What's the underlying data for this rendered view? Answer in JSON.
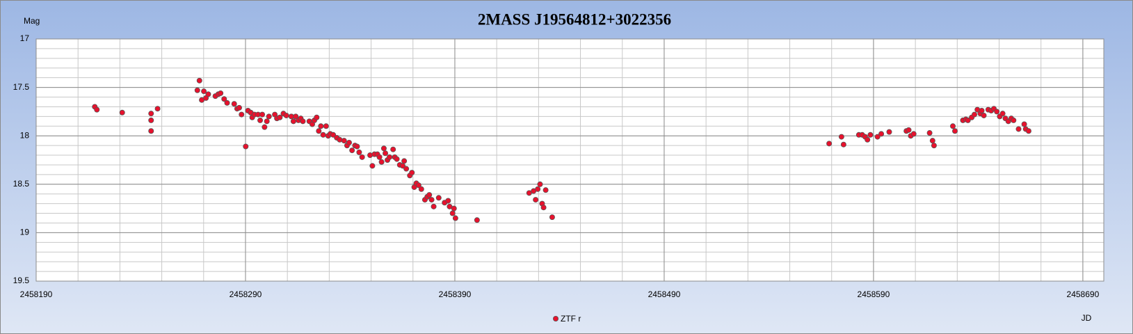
{
  "chart_data": {
    "type": "scatter",
    "title": "2MASS J19564812+3022356",
    "y_label": "Mag",
    "x_label": "JD",
    "xlim": [
      2458190,
      2458700
    ],
    "ylim": [
      17,
      19.5
    ],
    "y_inverted": true,
    "xticks": [
      2458190,
      2458290,
      2458390,
      2458490,
      2458590,
      2458690
    ],
    "yticks": [
      17,
      17.5,
      18,
      18.5,
      19,
      19.5
    ],
    "grid": true,
    "minor_grid": true,
    "legend": "bottom",
    "series": [
      {
        "name": "ZTF r",
        "color": "#e8112d",
        "x": [
          2458218.0,
          2458219.0,
          2458231.1,
          2458244.9,
          2458244.9,
          2458244.9,
          2458248.0,
          2458267.0,
          2458268.0,
          2458269.1,
          2458270.1,
          2458271.1,
          2458272.2,
          2458275.6,
          2458277.0,
          2458278.1,
          2458279.8,
          2458281.2,
          2458284.6,
          2458286.0,
          2458287.0,
          2458288.1,
          2458290.1,
          2458291.2,
          2458292.5,
          2458293.2,
          2458294.3,
          2458296.0,
          2458297.0,
          2458298.0,
          2458299.1,
          2458300.2,
          2458301.2,
          2458304.0,
          2458305.0,
          2458306.4,
          2458308.1,
          2458309.5,
          2458311.9,
          2458312.9,
          2458314.0,
          2458315.3,
          2458316.4,
          2458317.4,
          2458320.5,
          2458321.9,
          2458322.9,
          2458324.0,
          2458325.0,
          2458326.0,
          2458327.1,
          2458328.5,
          2458329.5,
          2458330.5,
          2458331.9,
          2458333.6,
          2458335.0,
          2458337.1,
          2458338.5,
          2458339.5,
          2458340.9,
          2458342.3,
          2458343.3,
          2458344.3,
          2458345.7,
          2458349.5,
          2458350.6,
          2458351.6,
          2458353.0,
          2458354.0,
          2458355.0,
          2458356.1,
          2458356.8,
          2458357.8,
          2458358.8,
          2458360.5,
          2458361.3,
          2458362.3,
          2458363.7,
          2458365.1,
          2458365.8,
          2458366.8,
          2458368.5,
          2458369.5,
          2458370.6,
          2458371.6,
          2458372.7,
          2458374.0,
          2458375.7,
          2458376.8,
          2458377.8,
          2458378.9,
          2458379.9,
          2458382.3,
          2458385.1,
          2458386.8,
          2458387.5,
          2458388.9,
          2458389.6,
          2458390.3,
          2458400.6,
          2458425.5,
          2458427.6,
          2458428.6,
          2458429.6,
          2458430.7,
          2458431.7,
          2458432.4,
          2458433.4,
          2458436.5,
          2458568.8,
          2458574.7,
          2458575.7,
          2458583.0,
          2458584.6,
          2458586.0,
          2458587.1,
          2458588.5,
          2458591.9,
          2458593.7,
          2458597.5,
          2458605.7,
          2458606.8,
          2458607.8,
          2458609.2,
          2458616.8,
          2458618.2,
          2458618.9,
          2458627.9,
          2458628.9,
          2458632.7,
          2458634.1,
          2458635.1,
          2458636.9,
          2458638.2,
          2458639.6,
          2458641.0,
          2458641.7,
          2458642.7,
          2458644.8,
          2458646.2,
          2458647.5,
          2458648.9,
          2458650.3,
          2458651.7,
          2458653.0,
          2458654.4,
          2458655.8,
          2458656.9,
          2458659.3,
          2458662.0,
          2458662.7,
          2458664.1
        ],
        "values": [
          17.7,
          17.73,
          17.76,
          17.77,
          17.84,
          17.95,
          17.72,
          17.53,
          17.43,
          17.63,
          17.54,
          17.61,
          17.57,
          17.59,
          17.57,
          17.56,
          17.62,
          17.66,
          17.67,
          17.72,
          17.71,
          17.78,
          18.11,
          17.74,
          17.76,
          17.81,
          17.78,
          17.78,
          17.84,
          17.78,
          17.91,
          17.85,
          17.8,
          17.78,
          17.82,
          17.81,
          17.77,
          17.79,
          17.8,
          17.85,
          17.8,
          17.84,
          17.82,
          17.85,
          17.85,
          17.88,
          17.84,
          17.81,
          17.95,
          17.9,
          17.99,
          17.9,
          18.0,
          17.98,
          17.99,
          18.02,
          18.04,
          18.05,
          18.1,
          18.07,
          18.15,
          18.1,
          18.11,
          18.17,
          18.22,
          18.2,
          18.31,
          18.19,
          18.19,
          18.22,
          18.27,
          18.13,
          18.18,
          18.25,
          18.22,
          18.14,
          18.22,
          18.24,
          18.3,
          18.31,
          18.26,
          18.34,
          18.41,
          18.38,
          18.53,
          18.49,
          18.51,
          18.55,
          18.66,
          18.63,
          18.61,
          18.66,
          18.73,
          18.64,
          18.69,
          18.67,
          18.73,
          18.8,
          18.75,
          18.85,
          18.87,
          18.59,
          18.57,
          18.66,
          18.55,
          18.5,
          18.7,
          18.74,
          18.56,
          18.84,
          18.08,
          18.01,
          18.09,
          17.99,
          17.99,
          18.01,
          18.04,
          17.99,
          18.01,
          17.98,
          17.96,
          17.95,
          17.94,
          18.0,
          17.98,
          17.97,
          18.05,
          18.1,
          17.9,
          17.95,
          17.84,
          17.83,
          17.84,
          17.81,
          17.78,
          17.73,
          17.77,
          17.74,
          17.79,
          17.73,
          17.74,
          17.72,
          17.75,
          17.8,
          17.77,
          17.82,
          17.85,
          17.82,
          17.84,
          17.93,
          17.88,
          17.93,
          17.95
        ]
      }
    ]
  }
}
